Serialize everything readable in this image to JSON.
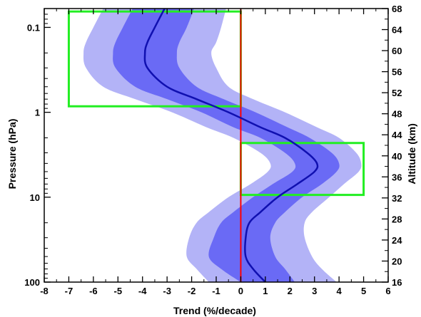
{
  "chart_data": {
    "type": "area",
    "xlabel": "Trend (%/decade)",
    "ylabel": "Pressure (hPa)",
    "y2label": "Altitude (km)",
    "xlim": [
      -8,
      6
    ],
    "ylim": [
      100,
      0.06
    ],
    "yscale": "log",
    "y2lim": [
      16,
      68
    ],
    "xticks": [
      -8,
      -7,
      -6,
      -5,
      -4,
      -3,
      -2,
      -1,
      0,
      1,
      2,
      3,
      4,
      5,
      6
    ],
    "yticks": [
      0.1,
      1,
      10,
      100
    ],
    "ytick_labels": [
      "0.1",
      "1",
      "10",
      "100"
    ],
    "y2ticks": [
      16,
      20,
      24,
      28,
      32,
      36,
      40,
      44,
      48,
      52,
      56,
      60,
      64,
      68
    ],
    "grid": false,
    "legend": false,
    "pressure": [
      0.06,
      0.1,
      0.15,
      0.2,
      0.3,
      0.5,
      0.7,
      1.0,
      1.5,
      2,
      3,
      4,
      5,
      7,
      10,
      15,
      20,
      30,
      50,
      70,
      100
    ],
    "series": [
      {
        "role": "mean",
        "color": "#1010b0",
        "values": [
          -3.1,
          -3.5,
          -3.8,
          -3.9,
          -3.8,
          -3.0,
          -1.8,
          -0.5,
          0.8,
          1.8,
          2.7,
          3.1,
          3.0,
          2.3,
          1.5,
          0.8,
          0.35,
          0.2,
          0.2,
          0.5,
          1.0
        ]
      },
      {
        "role": "inner-band",
        "color": "#6a6af5",
        "lower": [
          -4.4,
          -4.8,
          -5.1,
          -5.2,
          -5.1,
          -4.3,
          -3.0,
          -1.6,
          -0.3,
          0.8,
          1.8,
          2.2,
          2.1,
          1.3,
          0.5,
          -0.3,
          -0.8,
          -1.1,
          -1.3,
          -0.8,
          0.0
        ],
        "upper": [
          -1.9,
          -2.2,
          -2.5,
          -2.6,
          -2.5,
          -1.8,
          -0.7,
          0.6,
          1.9,
          2.8,
          3.7,
          4.0,
          3.9,
          3.3,
          2.5,
          1.8,
          1.4,
          1.2,
          1.4,
          1.8,
          2.2
        ]
      },
      {
        "role": "outer-band",
        "color": "#b3b3f7",
        "lower": [
          -5.6,
          -6.0,
          -6.3,
          -6.4,
          -6.3,
          -5.6,
          -4.3,
          -2.8,
          -1.4,
          -0.3,
          0.8,
          1.2,
          1.1,
          0.4,
          -0.5,
          -1.3,
          -1.8,
          -2.1,
          -2.2,
          -1.8,
          -1.3
        ],
        "upper": [
          -0.6,
          -0.8,
          -1.0,
          -1.2,
          -1.0,
          -0.5,
          0.5,
          1.8,
          3.1,
          4.0,
          4.7,
          4.9,
          4.8,
          4.2,
          3.6,
          2.9,
          2.6,
          2.6,
          2.9,
          3.3,
          3.9
        ]
      }
    ],
    "reference_line": {
      "x": 0,
      "color": "#ff0000"
    },
    "highlight_boxes": [
      {
        "color": "#22ee22",
        "x0": -7,
        "x1": 0,
        "p_top": 0.065,
        "p_bottom": 0.85
      },
      {
        "color": "#22ee22",
        "x0": 0,
        "x1": 5,
        "p_top": 2.3,
        "p_bottom": 9.4
      }
    ]
  }
}
